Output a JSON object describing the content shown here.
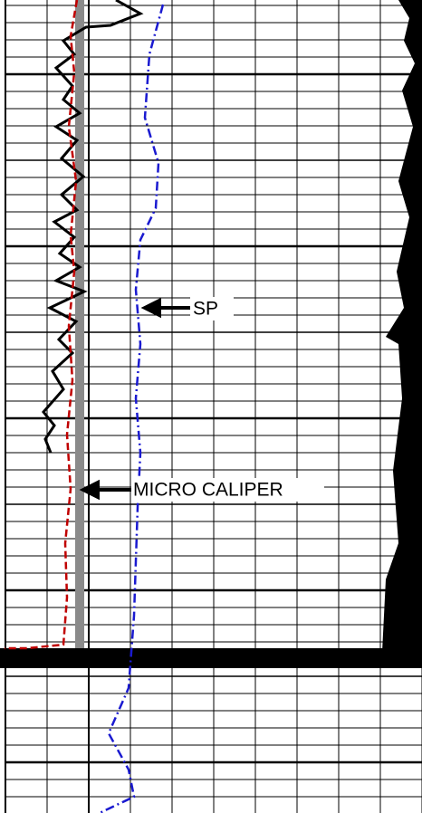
{
  "annotations": {
    "sp": "SP",
    "micro_caliper": "MICRO CALIPER"
  }
}
